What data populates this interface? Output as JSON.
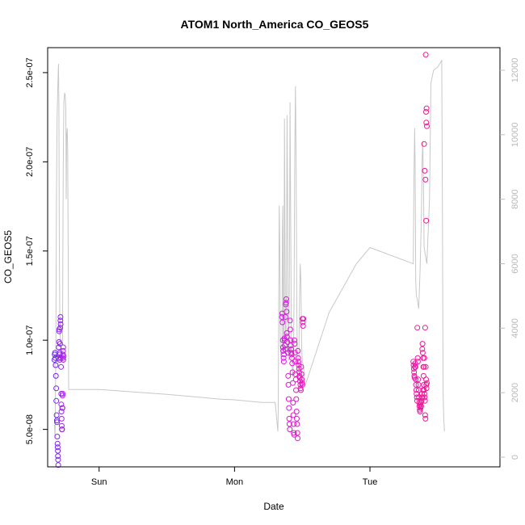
{
  "chart_data": {
    "type": "scatter",
    "title": "ATOM1 North_America CO_GEOS5",
    "xlabel": "Date",
    "ylabel": "CO_GEOS5",
    "x_ticks": [
      {
        "label": "Sun",
        "value": 0
      },
      {
        "label": "Mon",
        "value": 1
      },
      {
        "label": "Tue",
        "value": 2
      }
    ],
    "xlim": [
      -0.38,
      2.96
    ],
    "ylim": [
      2.9e-08,
      2.64e-07
    ],
    "y_ticks": [
      {
        "label": "5.0e-08",
        "value": 5e-08
      },
      {
        "label": "1.0e-07",
        "value": 1e-07
      },
      {
        "label": "1.5e-07",
        "value": 1.5e-07
      },
      {
        "label": "2.0e-07",
        "value": 2e-07
      },
      {
        "label": "2.5e-07",
        "value": 2.5e-07
      }
    ],
    "y2lim": [
      -300,
      12700
    ],
    "y2_ticks": [
      {
        "label": "0",
        "value": 0
      },
      {
        "label": "2000",
        "value": 2000
      },
      {
        "label": "4000",
        "value": 4000
      },
      {
        "label": "6000",
        "value": 6000
      },
      {
        "label": "8000",
        "value": 8000
      },
      {
        "label": "10000",
        "value": 10000
      },
      {
        "label": "12000",
        "value": 12000
      }
    ],
    "y2_color": "#bdbdbd",
    "altitude_line": {
      "color": "#c8c8c8",
      "points": [
        [
          -0.33,
          1000
        ],
        [
          -0.325,
          600
        ],
        [
          -0.32,
          3400
        ],
        [
          -0.315,
          8000
        ],
        [
          -0.31,
          10500
        ],
        [
          -0.305,
          11500
        ],
        [
          -0.3,
          12200
        ],
        [
          -0.297,
          11000
        ],
        [
          -0.294,
          7000
        ],
        [
          -0.29,
          4000
        ],
        [
          -0.285,
          3600
        ],
        [
          -0.28,
          3500
        ],
        [
          -0.27,
          3600
        ],
        [
          -0.265,
          9000
        ],
        [
          -0.26,
          11000
        ],
        [
          -0.255,
          11300
        ],
        [
          -0.25,
          11200
        ],
        [
          -0.246,
          10800
        ],
        [
          -0.243,
          8000
        ],
        [
          -0.24,
          10000
        ],
        [
          -0.235,
          10200
        ],
        [
          -0.232,
          9500
        ],
        [
          -0.228,
          6000
        ],
        [
          -0.225,
          2100
        ],
        [
          0.0,
          2100
        ],
        [
          0.5,
          1950
        ],
        [
          0.9,
          1800
        ],
        [
          1.0,
          1780
        ],
        [
          1.2,
          1700
        ],
        [
          1.3,
          1700
        ],
        [
          1.32,
          800
        ],
        [
          1.323,
          1500
        ],
        [
          1.327,
          5500
        ],
        [
          1.33,
          7800
        ],
        [
          1.334,
          6500
        ],
        [
          1.338,
          3500
        ],
        [
          1.342,
          3100
        ],
        [
          1.35,
          3300
        ],
        [
          1.353,
          7000
        ],
        [
          1.356,
          7800
        ],
        [
          1.36,
          3200
        ],
        [
          1.365,
          3400
        ],
        [
          1.369,
          10500
        ],
        [
          1.372,
          7500
        ],
        [
          1.375,
          4000
        ],
        [
          1.38,
          3500
        ],
        [
          1.384,
          6000
        ],
        [
          1.388,
          10600
        ],
        [
          1.392,
          8000
        ],
        [
          1.396,
          3200
        ],
        [
          1.4,
          3000
        ],
        [
          1.405,
          5500
        ],
        [
          1.41,
          11000
        ],
        [
          1.415,
          7000
        ],
        [
          1.42,
          3300
        ],
        [
          1.425,
          2900
        ],
        [
          1.43,
          2500
        ],
        [
          1.435,
          3000
        ],
        [
          1.44,
          5000
        ],
        [
          1.445,
          9500
        ],
        [
          1.45,
          11500
        ],
        [
          1.455,
          9000
        ],
        [
          1.46,
          4500
        ],
        [
          1.465,
          3000
        ],
        [
          1.47,
          2700
        ],
        [
          1.475,
          3000
        ],
        [
          1.48,
          5000
        ],
        [
          1.485,
          6000
        ],
        [
          1.49,
          5500
        ],
        [
          1.495,
          3500
        ],
        [
          1.5,
          3000
        ],
        [
          1.51,
          2800
        ],
        [
          1.52,
          2200
        ],
        [
          1.7,
          4500
        ],
        [
          1.9,
          6000
        ],
        [
          2.0,
          6500
        ],
        [
          2.32,
          6000
        ],
        [
          2.325,
          8600
        ],
        [
          2.33,
          10200
        ],
        [
          2.334,
          9000
        ],
        [
          2.338,
          5500
        ],
        [
          2.342,
          5000
        ],
        [
          2.35,
          4900
        ],
        [
          2.36,
          4600
        ],
        [
          2.37,
          5800
        ],
        [
          2.38,
          7500
        ],
        [
          2.385,
          9200
        ],
        [
          2.39,
          9800
        ],
        [
          2.395,
          8500
        ],
        [
          2.4,
          6500
        ],
        [
          2.42,
          6000
        ],
        [
          2.44,
          8000
        ],
        [
          2.45,
          11600
        ],
        [
          2.47,
          12000
        ],
        [
          2.5,
          12100
        ],
        [
          2.53,
          12300
        ],
        [
          2.535,
          8000
        ],
        [
          2.54,
          2000
        ],
        [
          2.545,
          1200
        ],
        [
          2.55,
          800
        ]
      ]
    },
    "series": [
      {
        "color_start": "#6a2af5",
        "color_end": "#b021e6",
        "points": [
          [
            -0.33,
            8.9e-08
          ],
          [
            -0.328,
            9.2e-08
          ],
          [
            -0.325,
            9.3e-08
          ],
          [
            -0.323,
            9e-08
          ],
          [
            -0.321,
            8.6e-08
          ],
          [
            -0.319,
            8e-08
          ],
          [
            -0.317,
            7.3e-08
          ],
          [
            -0.316,
            6.6e-08
          ],
          [
            -0.314,
            5.8e-08
          ],
          [
            -0.312,
            5.5e-08
          ],
          [
            -0.311,
            5.4e-08
          ],
          [
            -0.309,
            4.6e-08
          ],
          [
            -0.307,
            4.2e-08
          ],
          [
            -0.306,
            4e-08
          ],
          [
            -0.305,
            3.8e-08
          ],
          [
            -0.304,
            3.5e-08
          ],
          [
            -0.303,
            3.3e-08
          ],
          [
            -0.302,
            3e-08
          ],
          [
            -0.3,
            9e-08
          ],
          [
            -0.298,
            9.6e-08
          ],
          [
            -0.296,
            9.9e-08
          ],
          [
            -0.295,
            1.05e-07
          ],
          [
            -0.294,
            1.06e-07
          ],
          [
            -0.292,
            9.2e-08
          ],
          [
            -0.291,
            8.9e-08
          ],
          [
            -0.29,
            9.3e-08
          ],
          [
            -0.288,
            9.8e-08
          ],
          [
            -0.287,
            1.07e-07
          ],
          [
            -0.286,
            1.11e-07
          ],
          [
            -0.285,
            1.13e-07
          ],
          [
            -0.284,
            1.09e-07
          ],
          [
            -0.283,
            9e-08
          ],
          [
            -0.281,
            8.5e-08
          ],
          [
            -0.28,
            7e-08
          ],
          [
            -0.279,
            6.4e-08
          ],
          [
            -0.278,
            6e-08
          ],
          [
            -0.277,
            5.6e-08
          ],
          [
            -0.276,
            5.2e-08
          ],
          [
            -0.275,
            5e-08
          ],
          [
            -0.273,
            5e-08
          ],
          [
            -0.272,
            6.2e-08
          ],
          [
            -0.271,
            6.2e-08
          ],
          [
            -0.27,
            6.9e-08
          ],
          [
            -0.269,
            7e-08
          ],
          [
            -0.268,
            9e-08
          ],
          [
            -0.267,
            9.2e-08
          ],
          [
            -0.266,
            9.4e-08
          ],
          [
            -0.265,
            9.6e-08
          ],
          [
            -0.264,
            8.9e-08
          ],
          [
            -0.262,
            9.1e-08
          ]
        ]
      },
      {
        "color_start": "#d11ae6",
        "color_end": "#e81ab4",
        "points": [
          [
            1.35,
            1.13e-07
          ],
          [
            1.352,
            1.15e-07
          ],
          [
            1.354,
            1.1e-07
          ],
          [
            1.356,
            1e-07
          ],
          [
            1.358,
            9.6e-08
          ],
          [
            1.36,
            9.4e-08
          ],
          [
            1.362,
            9e-08
          ],
          [
            1.364,
            8.8e-08
          ],
          [
            1.366,
            9.2e-08
          ],
          [
            1.368,
            1.01e-07
          ],
          [
            1.37,
            1e-07
          ],
          [
            1.372,
            9.7e-08
          ],
          [
            1.374,
            9.5e-08
          ],
          [
            1.376,
            1.13e-07
          ],
          [
            1.378,
            1.2e-07
          ],
          [
            1.38,
            1.21e-07
          ],
          [
            1.382,
            1.23e-07
          ],
          [
            1.384,
            1.16e-07
          ],
          [
            1.386,
            1.04e-07
          ],
          [
            1.388,
            1.02e-07
          ],
          [
            1.39,
            9.9e-08
          ],
          [
            1.392,
            9.5e-08
          ],
          [
            1.394,
            9.3e-08
          ],
          [
            1.396,
            8e-08
          ],
          [
            1.398,
            7.5e-08
          ],
          [
            1.4,
            6.7e-08
          ],
          [
            1.402,
            6.2e-08
          ],
          [
            1.404,
            5.6e-08
          ],
          [
            1.406,
            5.3e-08
          ],
          [
            1.408,
            5e-08
          ],
          [
            1.41,
            1.11e-07
          ],
          [
            1.412,
            1.06e-07
          ],
          [
            1.414,
            1e-07
          ],
          [
            1.416,
            9.7e-08
          ],
          [
            1.418,
            9.5e-08
          ],
          [
            1.42,
            9.3e-08
          ],
          [
            1.422,
            9.2e-08
          ],
          [
            1.424,
            9e-08
          ],
          [
            1.426,
            8.7e-08
          ],
          [
            1.428,
            8.2e-08
          ],
          [
            1.43,
            7.6e-08
          ],
          [
            1.432,
            6.5e-08
          ],
          [
            1.434,
            5.8e-08
          ],
          [
            1.436,
            5.3e-08
          ],
          [
            1.438,
            4.8e-08
          ],
          [
            1.44,
            4.7e-08
          ],
          [
            1.442,
            1e-07
          ],
          [
            1.444,
            9.8e-08
          ],
          [
            1.446,
            9.3e-08
          ],
          [
            1.448,
            8.8e-08
          ],
          [
            1.45,
            8.1e-08
          ],
          [
            1.452,
            7.8e-08
          ],
          [
            1.454,
            7.2e-08
          ],
          [
            1.456,
            6.7e-08
          ],
          [
            1.458,
            6e-08
          ],
          [
            1.46,
            5.6e-08
          ],
          [
            1.462,
            5.3e-08
          ],
          [
            1.464,
            4.8e-08
          ],
          [
            1.466,
            4.5e-08
          ],
          [
            1.468,
            9.4e-08
          ],
          [
            1.47,
            9e-08
          ],
          [
            1.472,
            8.8e-08
          ],
          [
            1.474,
            8.6e-08
          ],
          [
            1.476,
            8.4e-08
          ],
          [
            1.478,
            8.2e-08
          ],
          [
            1.48,
            8e-08
          ],
          [
            1.482,
            7.9e-08
          ],
          [
            1.484,
            7.7e-08
          ],
          [
            1.486,
            7.5e-08
          ],
          [
            1.488,
            7.3e-08
          ],
          [
            1.49,
            7.2e-08
          ],
          [
            1.492,
            8.5e-08
          ],
          [
            1.494,
            8.1e-08
          ],
          [
            1.496,
            7.8e-08
          ],
          [
            1.498,
            7.6e-08
          ],
          [
            1.5,
            7.5e-08
          ],
          [
            1.502,
            1.12e-07
          ],
          [
            1.504,
            1.1e-07
          ],
          [
            1.506,
            1.08e-07
          ],
          [
            1.508,
            1.12e-07
          ]
        ]
      },
      {
        "color_start": "#ea1aa8",
        "color_end": "#f0168a",
        "points": [
          [
            2.32,
            8.8e-08
          ],
          [
            2.322,
            8.6e-08
          ],
          [
            2.324,
            8.4e-08
          ],
          [
            2.326,
            8.2e-08
          ],
          [
            2.328,
            8e-08
          ],
          [
            2.33,
            7.9e-08
          ],
          [
            2.332,
            8.5e-08
          ],
          [
            2.334,
            8.7e-08
          ],
          [
            2.336,
            8.5e-08
          ],
          [
            2.338,
            7.8e-08
          ],
          [
            2.34,
            7.5e-08
          ],
          [
            2.342,
            7.2e-08
          ],
          [
            2.344,
            7e-08
          ],
          [
            2.346,
            6.8e-08
          ],
          [
            2.348,
            6.6e-08
          ],
          [
            2.35,
            1.07e-07
          ],
          [
            2.352,
            9e-08
          ],
          [
            2.354,
            8.8e-08
          ],
          [
            2.356,
            7.8e-08
          ],
          [
            2.358,
            7.5e-08
          ],
          [
            2.36,
            7.2e-08
          ],
          [
            2.362,
            6.8e-08
          ],
          [
            2.364,
            6.5e-08
          ],
          [
            2.366,
            6.3e-08
          ],
          [
            2.368,
            6.1e-08
          ],
          [
            2.37,
            6e-08
          ],
          [
            2.372,
            6.4e-08
          ],
          [
            2.374,
            6.2e-08
          ],
          [
            2.376,
            6.5e-08
          ],
          [
            2.378,
            6.3e-08
          ],
          [
            2.38,
            6.6e-08
          ],
          [
            2.382,
            6.8e-08
          ],
          [
            2.384,
            7e-08
          ],
          [
            2.386,
            9.5e-08
          ],
          [
            2.388,
            9.8e-08
          ],
          [
            2.39,
            9.3e-08
          ],
          [
            2.392,
            9e-08
          ],
          [
            2.394,
            8.5e-08
          ],
          [
            2.396,
            8e-08
          ],
          [
            2.398,
            7.5e-08
          ],
          [
            2.4,
            7.2e-08
          ],
          [
            2.402,
            7e-08
          ],
          [
            2.404,
            6.8e-08
          ],
          [
            2.406,
            6.6e-08
          ],
          [
            2.408,
            5.8e-08
          ],
          [
            2.41,
            5.6e-08
          ],
          [
            2.412,
            2.6e-07
          ],
          [
            2.414,
            2.28e-07
          ],
          [
            2.416,
            2.22e-07
          ],
          [
            2.418,
            2.3e-07
          ],
          [
            2.42,
            2.2e-07
          ],
          [
            2.4,
            2.1e-07
          ],
          [
            2.405,
            1.95e-07
          ],
          [
            2.41,
            1.9e-07
          ],
          [
            2.415,
            1.67e-07
          ],
          [
            2.408,
            1.07e-07
          ],
          [
            2.412,
            8.5e-08
          ],
          [
            2.414,
            7.8e-08
          ],
          [
            2.416,
            7.5e-08
          ],
          [
            2.418,
            7.3e-08
          ],
          [
            2.42,
            7.6e-08
          ],
          [
            2.402,
            9e-08
          ],
          [
            2.398,
            8.5e-08
          ],
          [
            2.392,
            7.2e-08
          ],
          [
            2.388,
            6.8e-08
          ]
        ]
      }
    ],
    "grid": false,
    "legend": "none"
  }
}
